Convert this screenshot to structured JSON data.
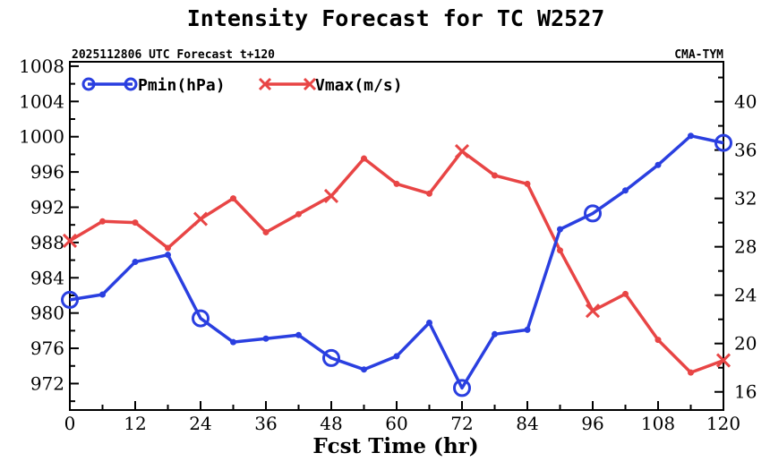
{
  "chart_data": {
    "type": "line",
    "title": "Intensity Forecast for TC W2527",
    "subtitle_left": "2025112806 UTC Forecast t+120",
    "subtitle_right": "CMA-TYM",
    "xlabel": "Fcst Time (hr)",
    "x_ticks": [
      0,
      12,
      24,
      36,
      48,
      60,
      72,
      84,
      96,
      108,
      120
    ],
    "xlim": [
      0,
      120
    ],
    "y_left": {
      "label": "Pmin(hPa)",
      "lim": [
        969,
        1008.5
      ],
      "ticks": [
        972,
        976,
        980,
        984,
        988,
        992,
        996,
        1000,
        1004,
        1008
      ]
    },
    "y_right": {
      "label": "Vmax(m/s)",
      "lim": [
        14.5,
        43.3
      ],
      "ticks": [
        16,
        20,
        24,
        28,
        32,
        36,
        40
      ]
    },
    "x": [
      0,
      6,
      12,
      18,
      24,
      30,
      36,
      42,
      48,
      54,
      60,
      66,
      72,
      78,
      84,
      90,
      96,
      102,
      108,
      114,
      120
    ],
    "series": [
      {
        "name": "Pmin(hPa)",
        "axis": "left",
        "color": "#2a3fe0",
        "marker": "circle",
        "values": [
          981.5,
          982.1,
          985.8,
          986.6,
          979.4,
          976.7,
          977.1,
          977.5,
          974.9,
          973.6,
          975.1,
          978.9,
          971.5,
          977.6,
          978.1,
          989.5,
          991.3,
          993.9,
          996.8,
          1000.1,
          999.3
        ]
      },
      {
        "name": "Vmax(m/s)",
        "axis": "right",
        "color": "#e84545",
        "marker": "x",
        "values": [
          28.5,
          30.1,
          30.0,
          27.9,
          30.3,
          32.0,
          29.2,
          30.7,
          32.2,
          35.3,
          33.2,
          32.4,
          35.9,
          33.9,
          33.2,
          27.7,
          22.7,
          24.1,
          20.3,
          17.6,
          18.6
        ]
      }
    ]
  }
}
